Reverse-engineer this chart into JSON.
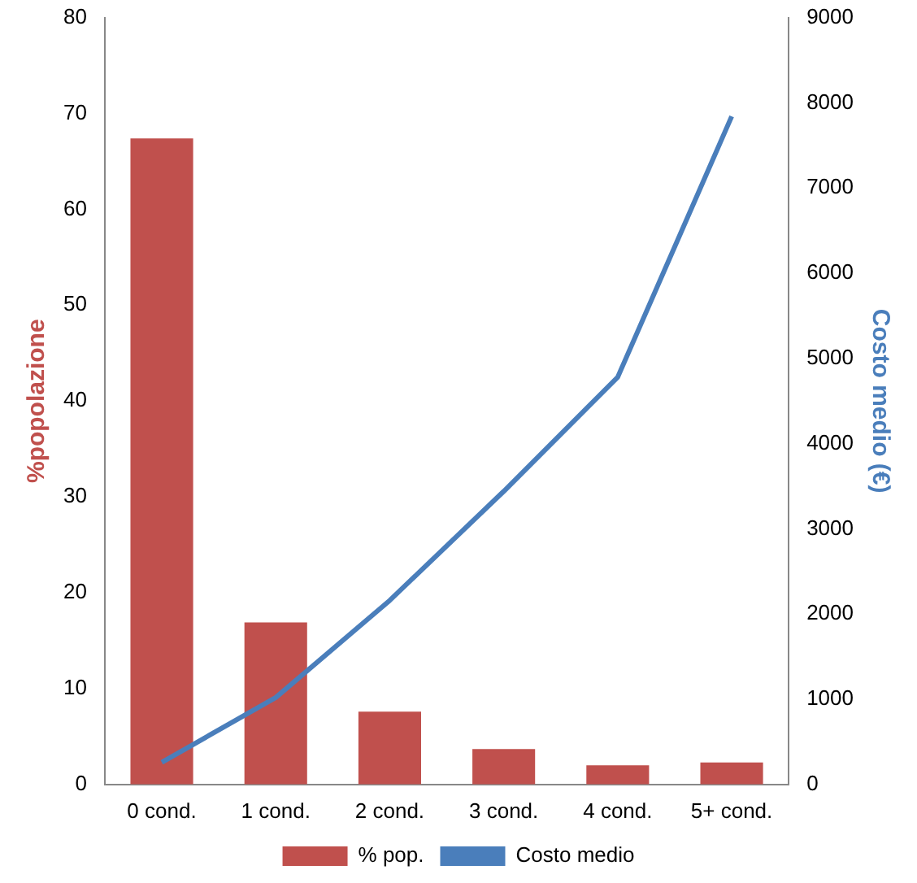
{
  "chart_data": {
    "type": "bar",
    "categories": [
      "0 cond.",
      "1 cond.",
      "2 cond.",
      "3 cond.",
      "4 cond.",
      "5+ cond."
    ],
    "series": [
      {
        "name": "% pop.",
        "color": "#c0504d",
        "values": [
          67.4,
          16.9,
          7.6,
          3.7,
          2.0,
          2.3
        ]
      },
      {
        "name": "Costo medio",
        "type": "line",
        "axis": "y2",
        "color": "#4a7ebb",
        "values": [
          260,
          1020,
          2160,
          3440,
          4780,
          7840
        ]
      }
    ],
    "ylabel": "%popolazione",
    "y2label": "Costo medio (€)",
    "ylim": [
      0,
      80
    ],
    "yticks": [
      0,
      10,
      20,
      30,
      40,
      50,
      60,
      70,
      80
    ],
    "y2lim": [
      0,
      9000
    ],
    "y2ticks": [
      0,
      1000,
      2000,
      3000,
      4000,
      5000,
      6000,
      7000,
      8000,
      9000
    ],
    "legend": "bottom",
    "grid": false,
    "marker": "none"
  }
}
